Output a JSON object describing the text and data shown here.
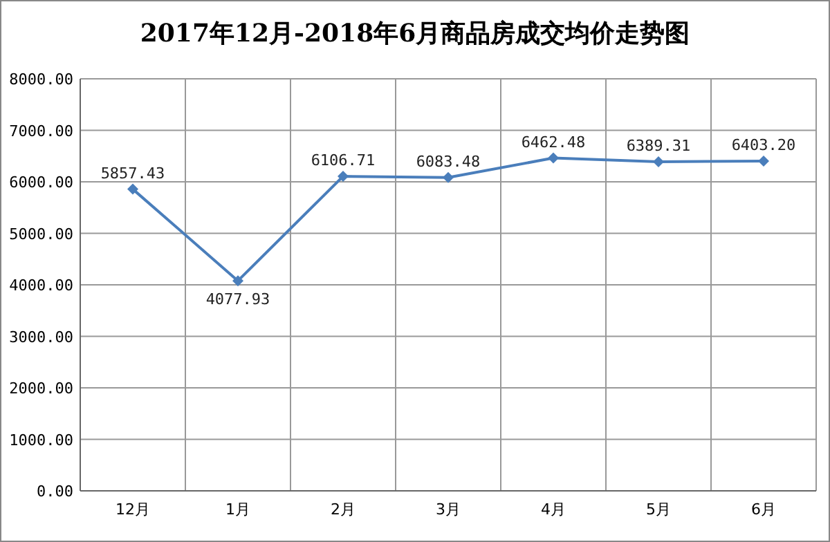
{
  "chart_data": {
    "type": "line",
    "title": "2017年12月-2018年6月商品房成交均价走势图",
    "categories": [
      "12月",
      "1月",
      "2月",
      "3月",
      "4月",
      "5月",
      "6月"
    ],
    "series": [
      {
        "color": "#4a7ebb",
        "values": [
          5857.43,
          4077.93,
          6106.71,
          6083.48,
          6462.48,
          6389.31,
          6403.2
        ]
      }
    ],
    "value_labels": [
      "5857.43",
      "4077.93",
      "6106.71",
      "6083.48",
      "6462.48",
      "6389.31",
      "6403.20"
    ],
    "ylim": [
      0,
      8000
    ],
    "yticks": [
      {
        "value": 0,
        "label": "0.00"
      },
      {
        "value": 1000,
        "label": "1000.00"
      },
      {
        "value": 2000,
        "label": "2000.00"
      },
      {
        "value": 3000,
        "label": "3000.00"
      },
      {
        "value": 4000,
        "label": "4000.00"
      },
      {
        "value": 5000,
        "label": "5000.00"
      },
      {
        "value": 6000,
        "label": "6000.00"
      },
      {
        "value": 7000,
        "label": "7000.00"
      },
      {
        "value": 8000,
        "label": "8000.00"
      }
    ],
    "grid": true,
    "marker": "diamond",
    "line_style": "solid"
  }
}
